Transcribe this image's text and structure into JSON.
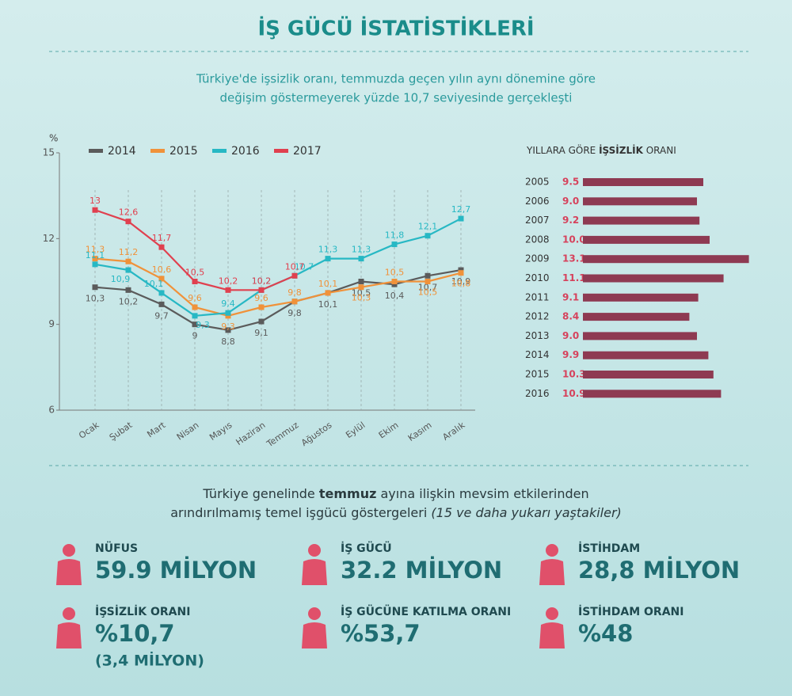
{
  "title": "İŞ GÜCÜ İSTATİSTİKLERİ",
  "subtitle": [
    "Türkiye'de işsizlik oranı, temmuzda geçen yılın aynı dönemine göre",
    "değişim göstermeyerek yüzde 10,7 seviyesinde gerçekleşti"
  ],
  "chart_data": [
    {
      "type": "line",
      "y_label": "%",
      "categories": [
        "Ocak",
        "Şubat",
        "Mart",
        "Nisan",
        "Mayıs",
        "Haziran",
        "Temmuz",
        "Ağustos",
        "Eylül",
        "Ekim",
        "Kasım",
        "Aralık"
      ],
      "ylim": [
        6,
        15
      ],
      "yticks": [
        6,
        9,
        12,
        15
      ],
      "series": [
        {
          "name": "2014",
          "color": "#5b5b5b",
          "values": [
            10.3,
            10.2,
            9.7,
            9,
            8.8,
            9.1,
            9.8,
            10.1,
            10.5,
            10.4,
            10.7,
            10.9
          ],
          "value_labels": [
            "10,3",
            "10,2",
            "9,7",
            "9",
            "8,8",
            "9,1",
            "9,8",
            "10,1",
            "10,5",
            "10,4",
            "10,7",
            "10,9"
          ]
        },
        {
          "name": "2015",
          "color": "#f0923a",
          "values": [
            11.3,
            11.2,
            10.6,
            9.6,
            9.3,
            9.6,
            9.8,
            10.1,
            10.3,
            10.5,
            10.5,
            10.8
          ],
          "value_labels": [
            "11,3",
            "11,2",
            "10,6",
            "9,6",
            "9,3",
            "9,6",
            "9,8",
            "10,1",
            "10,3",
            "10,5",
            "10,5",
            "10,8"
          ]
        },
        {
          "name": "2016",
          "color": "#27b8c4",
          "values": [
            11.1,
            10.9,
            10.1,
            9.3,
            9.4,
            10.2,
            10.7,
            11.3,
            11.3,
            11.8,
            12.1,
            12.7
          ],
          "value_labels": [
            "11,1",
            "10,9",
            "10,1",
            "9,3",
            "9,4",
            "10,2",
            "10,7",
            "11,3",
            "11,3",
            "11,8",
            "12,1",
            "12,7"
          ]
        },
        {
          "name": "2017",
          "color": "#e0404f",
          "values": [
            13,
            12.6,
            11.7,
            10.5,
            10.2,
            10.2,
            10.7,
            null,
            null,
            null,
            null,
            null
          ],
          "value_labels": [
            "13",
            "12,6",
            "11,7",
            "10,5",
            "10,2",
            "10,2",
            "10,7",
            null,
            null,
            null,
            null,
            null
          ]
        }
      ]
    },
    {
      "type": "bar",
      "orientation": "horizontal",
      "title": [
        "YILLARA GÖRE",
        "İŞSİZLİK",
        "ORANI"
      ],
      "categories": [
        "2005",
        "2006",
        "2007",
        "2008",
        "2009",
        "2010",
        "2011",
        "2012",
        "2013",
        "2014",
        "2015",
        "2016"
      ],
      "values": [
        9.5,
        9.0,
        9.2,
        10.0,
        13.1,
        11.1,
        9.1,
        8.4,
        9.0,
        9.9,
        10.3,
        10.9
      ],
      "value_labels": [
        "9.5",
        "9.0",
        "9.2",
        "10.0",
        "13.1",
        "11.1",
        "9.1",
        "8.4",
        "9.0",
        "9.9",
        "10.3",
        "10.9"
      ],
      "color": "#8e3a52",
      "label_color": "#d6425c",
      "xlim": [
        0,
        15
      ]
    }
  ],
  "intro": {
    "line1": [
      "Türkiye genelinde",
      "temmuz",
      "ayına ilişkin mevsim etkilerinden"
    ],
    "line2": [
      "arındırılmamış temel işgücü göstergeleri",
      "(15 ve daha yukarı yaştakiler)"
    ]
  },
  "stats": [
    {
      "label": "NÜFUS",
      "value": "59.9 MİLYON"
    },
    {
      "label": "İŞ GÜCÜ",
      "value": "32.2 MİLYON"
    },
    {
      "label": "İSTİHDAM",
      "value": "28,8 MİLYON"
    },
    {
      "label": "İŞSİZLİK ORANI",
      "value": "%10,7",
      "note": "(3,4 MİLYON)"
    },
    {
      "label": "İŞ GÜCÜNE KATILMA ORANI",
      "value": "%53,7"
    },
    {
      "label": "İSTİHDAM ORANI",
      "value": "%48"
    }
  ]
}
